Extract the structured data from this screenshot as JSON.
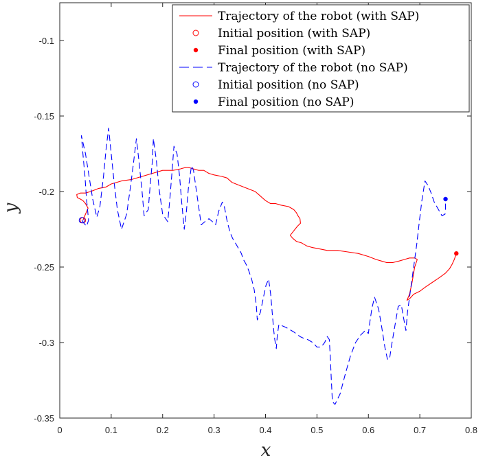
{
  "chart_data": {
    "type": "line",
    "xlabel": "x",
    "ylabel": "y",
    "xlim": [
      0,
      0.8
    ],
    "ylim": [
      -0.35,
      -0.075
    ],
    "x_ticks": [
      0,
      0.1,
      0.2,
      0.3,
      0.4,
      0.5,
      0.6,
      0.7,
      0.8
    ],
    "x_tick_labels": [
      "0",
      "0.1",
      "0.2",
      "0.3",
      "0.4",
      "0.5",
      "0.6",
      "0.7",
      "0.8"
    ],
    "y_ticks": [
      -0.35,
      -0.3,
      -0.25,
      -0.2,
      -0.15,
      -0.1
    ],
    "y_tick_labels": [
      "-0.35",
      "-0.3",
      "-0.25",
      "-0.2",
      "-0.15",
      "-0.1"
    ],
    "grid": false,
    "legend_position": "top-right",
    "series": [
      {
        "name": "Trajectory of the robot (with SAP)",
        "color": "#ff0000",
        "style": "solid",
        "points": [
          [
            0.045,
            -0.219
          ],
          [
            0.05,
            -0.215
          ],
          [
            0.055,
            -0.211
          ],
          [
            0.05,
            -0.208
          ],
          [
            0.045,
            -0.206
          ],
          [
            0.04,
            -0.205
          ],
          [
            0.034,
            -0.204
          ],
          [
            0.033,
            -0.202
          ],
          [
            0.04,
            -0.201
          ],
          [
            0.05,
            -0.201
          ],
          [
            0.06,
            -0.2
          ],
          [
            0.075,
            -0.198
          ],
          [
            0.09,
            -0.197
          ],
          [
            0.1,
            -0.195
          ],
          [
            0.12,
            -0.193
          ],
          [
            0.14,
            -0.192
          ],
          [
            0.16,
            -0.19
          ],
          [
            0.18,
            -0.188
          ],
          [
            0.2,
            -0.186
          ],
          [
            0.22,
            -0.186
          ],
          [
            0.235,
            -0.185
          ],
          [
            0.245,
            -0.184
          ],
          [
            0.25,
            -0.184
          ],
          [
            0.26,
            -0.185
          ],
          [
            0.27,
            -0.186
          ],
          [
            0.28,
            -0.186
          ],
          [
            0.29,
            -0.188
          ],
          [
            0.3,
            -0.189
          ],
          [
            0.315,
            -0.19
          ],
          [
            0.325,
            -0.191
          ],
          [
            0.335,
            -0.194
          ],
          [
            0.35,
            -0.196
          ],
          [
            0.365,
            -0.198
          ],
          [
            0.38,
            -0.2
          ],
          [
            0.39,
            -0.203
          ],
          [
            0.4,
            -0.206
          ],
          [
            0.41,
            -0.208
          ],
          [
            0.42,
            -0.208
          ],
          [
            0.43,
            -0.209
          ],
          [
            0.445,
            -0.21
          ],
          [
            0.455,
            -0.212
          ],
          [
            0.46,
            -0.214
          ],
          [
            0.463,
            -0.216
          ],
          [
            0.467,
            -0.218
          ],
          [
            0.468,
            -0.221
          ],
          [
            0.462,
            -0.223
          ],
          [
            0.455,
            -0.226
          ],
          [
            0.448,
            -0.229
          ],
          [
            0.453,
            -0.231
          ],
          [
            0.46,
            -0.233
          ],
          [
            0.47,
            -0.234
          ],
          [
            0.48,
            -0.236
          ],
          [
            0.49,
            -0.237
          ],
          [
            0.505,
            -0.238
          ],
          [
            0.52,
            -0.239
          ],
          [
            0.54,
            -0.239
          ],
          [
            0.56,
            -0.24
          ],
          [
            0.58,
            -0.241
          ],
          [
            0.6,
            -0.243
          ],
          [
            0.615,
            -0.245
          ],
          [
            0.625,
            -0.246
          ],
          [
            0.635,
            -0.247
          ],
          [
            0.648,
            -0.247
          ],
          [
            0.66,
            -0.246
          ],
          [
            0.67,
            -0.245
          ],
          [
            0.68,
            -0.244
          ],
          [
            0.69,
            -0.244
          ],
          [
            0.695,
            -0.245
          ],
          [
            0.69,
            -0.25
          ],
          [
            0.685,
            -0.26
          ],
          [
            0.68,
            -0.268
          ],
          [
            0.675,
            -0.272
          ],
          [
            0.68,
            -0.271
          ],
          [
            0.688,
            -0.268
          ],
          [
            0.7,
            -0.266
          ],
          [
            0.712,
            -0.263
          ],
          [
            0.725,
            -0.26
          ],
          [
            0.738,
            -0.257
          ],
          [
            0.75,
            -0.254
          ],
          [
            0.758,
            -0.251
          ],
          [
            0.763,
            -0.248
          ],
          [
            0.767,
            -0.245
          ],
          [
            0.771,
            -0.241
          ]
        ]
      },
      {
        "name": "Initial position (with SAP)",
        "color": "#ff0000",
        "marker": "open-circle",
        "points": [
          [
            0.045,
            -0.219
          ]
        ]
      },
      {
        "name": "Final position (with SAP)",
        "color": "#ff0000",
        "marker": "filled-dot",
        "points": [
          [
            0.771,
            -0.241
          ]
        ]
      },
      {
        "name": "Trajectory of the robot (no SAP)",
        "color": "#0000ff",
        "style": "dashed",
        "points": [
          [
            0.043,
            -0.219
          ],
          [
            0.047,
            -0.221
          ],
          [
            0.052,
            -0.223
          ],
          [
            0.056,
            -0.219
          ],
          [
            0.052,
            -0.205
          ],
          [
            0.049,
            -0.19
          ],
          [
            0.045,
            -0.175
          ],
          [
            0.042,
            -0.163
          ],
          [
            0.05,
            -0.175
          ],
          [
            0.057,
            -0.19
          ],
          [
            0.064,
            -0.205
          ],
          [
            0.072,
            -0.217
          ],
          [
            0.078,
            -0.21
          ],
          [
            0.085,
            -0.19
          ],
          [
            0.09,
            -0.172
          ],
          [
            0.095,
            -0.158
          ],
          [
            0.1,
            -0.175
          ],
          [
            0.106,
            -0.195
          ],
          [
            0.112,
            -0.212
          ],
          [
            0.12,
            -0.225
          ],
          [
            0.13,
            -0.215
          ],
          [
            0.137,
            -0.198
          ],
          [
            0.143,
            -0.182
          ],
          [
            0.149,
            -0.165
          ],
          [
            0.154,
            -0.18
          ],
          [
            0.16,
            -0.2
          ],
          [
            0.164,
            -0.216
          ],
          [
            0.172,
            -0.212
          ],
          [
            0.176,
            -0.195
          ],
          [
            0.18,
            -0.18
          ],
          [
            0.182,
            -0.165
          ],
          [
            0.188,
            -0.18
          ],
          [
            0.193,
            -0.198
          ],
          [
            0.2,
            -0.215
          ],
          [
            0.21,
            -0.22
          ],
          [
            0.214,
            -0.205
          ],
          [
            0.218,
            -0.188
          ],
          [
            0.222,
            -0.17
          ],
          [
            0.228,
            -0.175
          ],
          [
            0.233,
            -0.19
          ],
          [
            0.237,
            -0.207
          ],
          [
            0.242,
            -0.225
          ],
          [
            0.246,
            -0.214
          ],
          [
            0.25,
            -0.198
          ],
          [
            0.256,
            -0.183
          ],
          [
            0.26,
            -0.186
          ],
          [
            0.265,
            -0.198
          ],
          [
            0.27,
            -0.21
          ],
          [
            0.275,
            -0.222
          ],
          [
            0.282,
            -0.22
          ],
          [
            0.29,
            -0.218
          ],
          [
            0.297,
            -0.22
          ],
          [
            0.303,
            -0.222
          ],
          [
            0.309,
            -0.213
          ],
          [
            0.316,
            -0.207
          ],
          [
            0.32,
            -0.21
          ],
          [
            0.325,
            -0.219
          ],
          [
            0.331,
            -0.227
          ],
          [
            0.336,
            -0.231
          ],
          [
            0.343,
            -0.235
          ],
          [
            0.348,
            -0.238
          ],
          [
            0.353,
            -0.241
          ],
          [
            0.357,
            -0.245
          ],
          [
            0.362,
            -0.248
          ],
          [
            0.367,
            -0.252
          ],
          [
            0.373,
            -0.258
          ],
          [
            0.378,
            -0.265
          ],
          [
            0.382,
            -0.275
          ],
          [
            0.384,
            -0.285
          ],
          [
            0.39,
            -0.28
          ],
          [
            0.396,
            -0.27
          ],
          [
            0.401,
            -0.262
          ],
          [
            0.406,
            -0.258
          ],
          [
            0.41,
            -0.268
          ],
          [
            0.413,
            -0.28
          ],
          [
            0.416,
            -0.292
          ],
          [
            0.418,
            -0.298
          ],
          [
            0.421,
            -0.304
          ],
          [
            0.423,
            -0.295
          ],
          [
            0.426,
            -0.288
          ],
          [
            0.44,
            -0.29
          ],
          [
            0.455,
            -0.293
          ],
          [
            0.467,
            -0.296
          ],
          [
            0.473,
            -0.297
          ],
          [
            0.482,
            -0.298
          ],
          [
            0.492,
            -0.3
          ],
          [
            0.5,
            -0.303
          ],
          [
            0.508,
            -0.303
          ],
          [
            0.515,
            -0.3
          ],
          [
            0.52,
            -0.296
          ],
          [
            0.524,
            -0.298
          ],
          [
            0.526,
            -0.31
          ],
          [
            0.528,
            -0.325
          ],
          [
            0.53,
            -0.339
          ],
          [
            0.535,
            -0.341
          ],
          [
            0.545,
            -0.334
          ],
          [
            0.555,
            -0.321
          ],
          [
            0.565,
            -0.309
          ],
          [
            0.575,
            -0.3
          ],
          [
            0.585,
            -0.295
          ],
          [
            0.594,
            -0.292
          ],
          [
            0.6,
            -0.294
          ],
          [
            0.603,
            -0.286
          ],
          [
            0.607,
            -0.277
          ],
          [
            0.612,
            -0.27
          ],
          [
            0.62,
            -0.278
          ],
          [
            0.626,
            -0.29
          ],
          [
            0.632,
            -0.303
          ],
          [
            0.637,
            -0.311
          ],
          [
            0.641,
            -0.311
          ],
          [
            0.646,
            -0.3
          ],
          [
            0.652,
            -0.288
          ],
          [
            0.658,
            -0.276
          ],
          [
            0.664,
            -0.275
          ],
          [
            0.668,
            -0.283
          ],
          [
            0.673,
            -0.292
          ],
          [
            0.676,
            -0.28
          ],
          [
            0.682,
            -0.265
          ],
          [
            0.688,
            -0.25
          ],
          [
            0.694,
            -0.235
          ],
          [
            0.699,
            -0.22
          ],
          [
            0.704,
            -0.206
          ],
          [
            0.71,
            -0.193
          ],
          [
            0.716,
            -0.196
          ],
          [
            0.722,
            -0.201
          ],
          [
            0.728,
            -0.207
          ],
          [
            0.733,
            -0.21
          ],
          [
            0.738,
            -0.213
          ],
          [
            0.743,
            -0.216
          ],
          [
            0.749,
            -0.215
          ],
          [
            0.75,
            -0.211
          ],
          [
            0.75,
            -0.205
          ]
        ]
      },
      {
        "name": "Initial position (no SAP)",
        "color": "#0000ff",
        "marker": "open-circle",
        "points": [
          [
            0.043,
            -0.219
          ]
        ]
      },
      {
        "name": "Final position (no SAP)",
        "color": "#0000ff",
        "marker": "filled-dot",
        "points": [
          [
            0.75,
            -0.205
          ]
        ]
      }
    ]
  }
}
